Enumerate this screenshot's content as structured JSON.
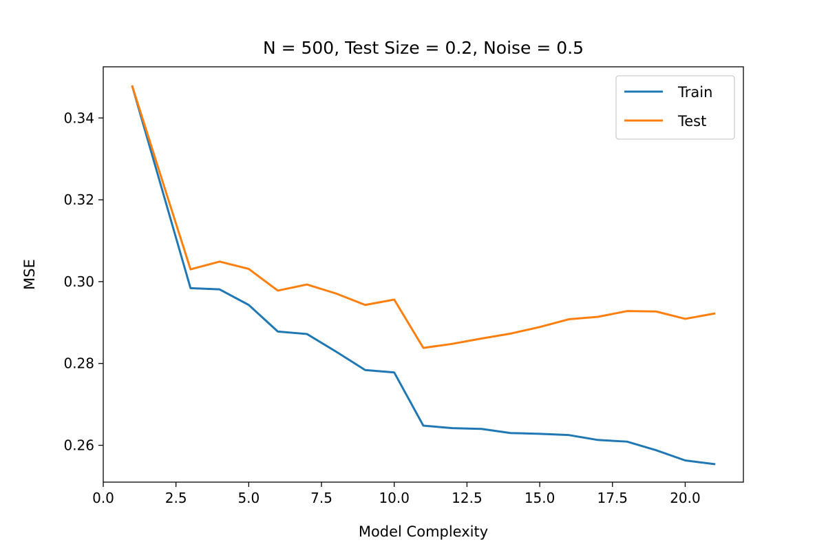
{
  "chart_data": {
    "type": "line",
    "title": "N = 500, Test Size = 0.2, Noise = 0.5",
    "xlabel": "Model Complexity",
    "ylabel": "MSE",
    "xlim": [
      0,
      22
    ],
    "ylim": [
      0.251,
      0.3525
    ],
    "xticks": [
      0,
      2.5,
      5,
      7.5,
      10,
      12.5,
      15,
      17.5,
      20
    ],
    "xtick_labels": [
      "0.0",
      "2.5",
      "5.0",
      "7.5",
      "10.0",
      "12.5",
      "15.0",
      "17.5",
      "20.0"
    ],
    "yticks": [
      0.26,
      0.28,
      0.3,
      0.32,
      0.34
    ],
    "ytick_labels": [
      "0.26",
      "0.28",
      "0.30",
      "0.32",
      "0.34"
    ],
    "grid": false,
    "legend_position": "top-right",
    "x": [
      1,
      3,
      4,
      5,
      6,
      7,
      8,
      9,
      10,
      11,
      12,
      13,
      14,
      15,
      16,
      17,
      18,
      19,
      20,
      21
    ],
    "series": [
      {
        "name": "Train",
        "color": "#1f77b4",
        "values": [
          0.3477,
          0.2984,
          0.2981,
          0.2943,
          0.2878,
          0.2872,
          0.2829,
          0.2784,
          0.2778,
          0.2648,
          0.2642,
          0.264,
          0.263,
          0.2628,
          0.2625,
          0.2613,
          0.2609,
          0.2588,
          0.2563,
          0.2554
        ]
      },
      {
        "name": "Test",
        "color": "#ff7f0e",
        "values": [
          0.3477,
          0.303,
          0.3049,
          0.3031,
          0.2978,
          0.2993,
          0.2971,
          0.2943,
          0.2956,
          0.2838,
          0.2848,
          0.2861,
          0.2873,
          0.2889,
          0.2908,
          0.2914,
          0.2928,
          0.2927,
          0.2909,
          0.2922
        ]
      }
    ]
  }
}
